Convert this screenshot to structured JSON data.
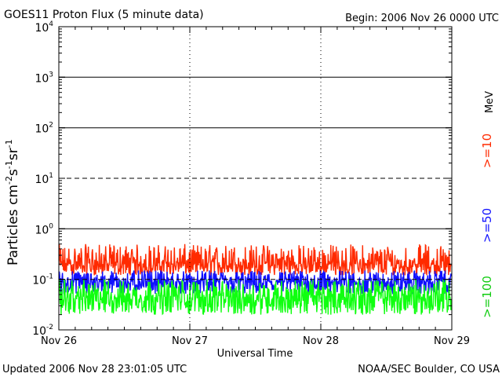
{
  "header": {
    "title": "GOES11 Proton Flux (5 minute data)",
    "begin": "Begin: 2006 Nov 26 0000 UTC"
  },
  "footer": {
    "updated": "Updated 2006 Nov 28 23:01:05 UTC",
    "source": "NOAA/SEC Boulder, CO USA"
  },
  "chart_data": {
    "type": "line",
    "title": "GOES11 Proton Flux (5 minute data)",
    "xlabel": "Universal Time",
    "ylabel": "Particles cm-2s-1sr-1",
    "y_scale": "log",
    "ylim": [
      0.01,
      10000
    ],
    "y_ticks": [
      {
        "value": 0.01,
        "base": "10",
        "exp": "-2"
      },
      {
        "value": 0.1,
        "base": "10",
        "exp": "-1"
      },
      {
        "value": 1,
        "base": "10",
        "exp": "0"
      },
      {
        "value": 10,
        "base": "10",
        "exp": "1"
      },
      {
        "value": 100,
        "base": "10",
        "exp": "2"
      },
      {
        "value": 1000,
        "base": "10",
        "exp": "3"
      },
      {
        "value": 10000,
        "base": "10",
        "exp": "4"
      }
    ],
    "x_ticks": [
      "Nov 26",
      "Nov 27",
      "Nov 28",
      "Nov 29"
    ],
    "x_range_days": [
      0,
      3
    ],
    "grid": true,
    "energy_unit": "MeV",
    "colors": {
      "ge10": "#ff2a00",
      "ge50": "#1010ff",
      "ge100": "#10ff10"
    },
    "series": [
      {
        "name": ">=10",
        "color": "#ff2a00",
        "typical_range": [
          0.12,
          0.5
        ],
        "median": 0.2
      },
      {
        "name": ">=50",
        "color": "#1010ff",
        "typical_range": [
          0.05,
          0.15
        ],
        "median": 0.09
      },
      {
        "name": ">=100",
        "color": "#10ff10",
        "typical_range": [
          0.02,
          0.1
        ],
        "median": 0.045
      }
    ]
  }
}
